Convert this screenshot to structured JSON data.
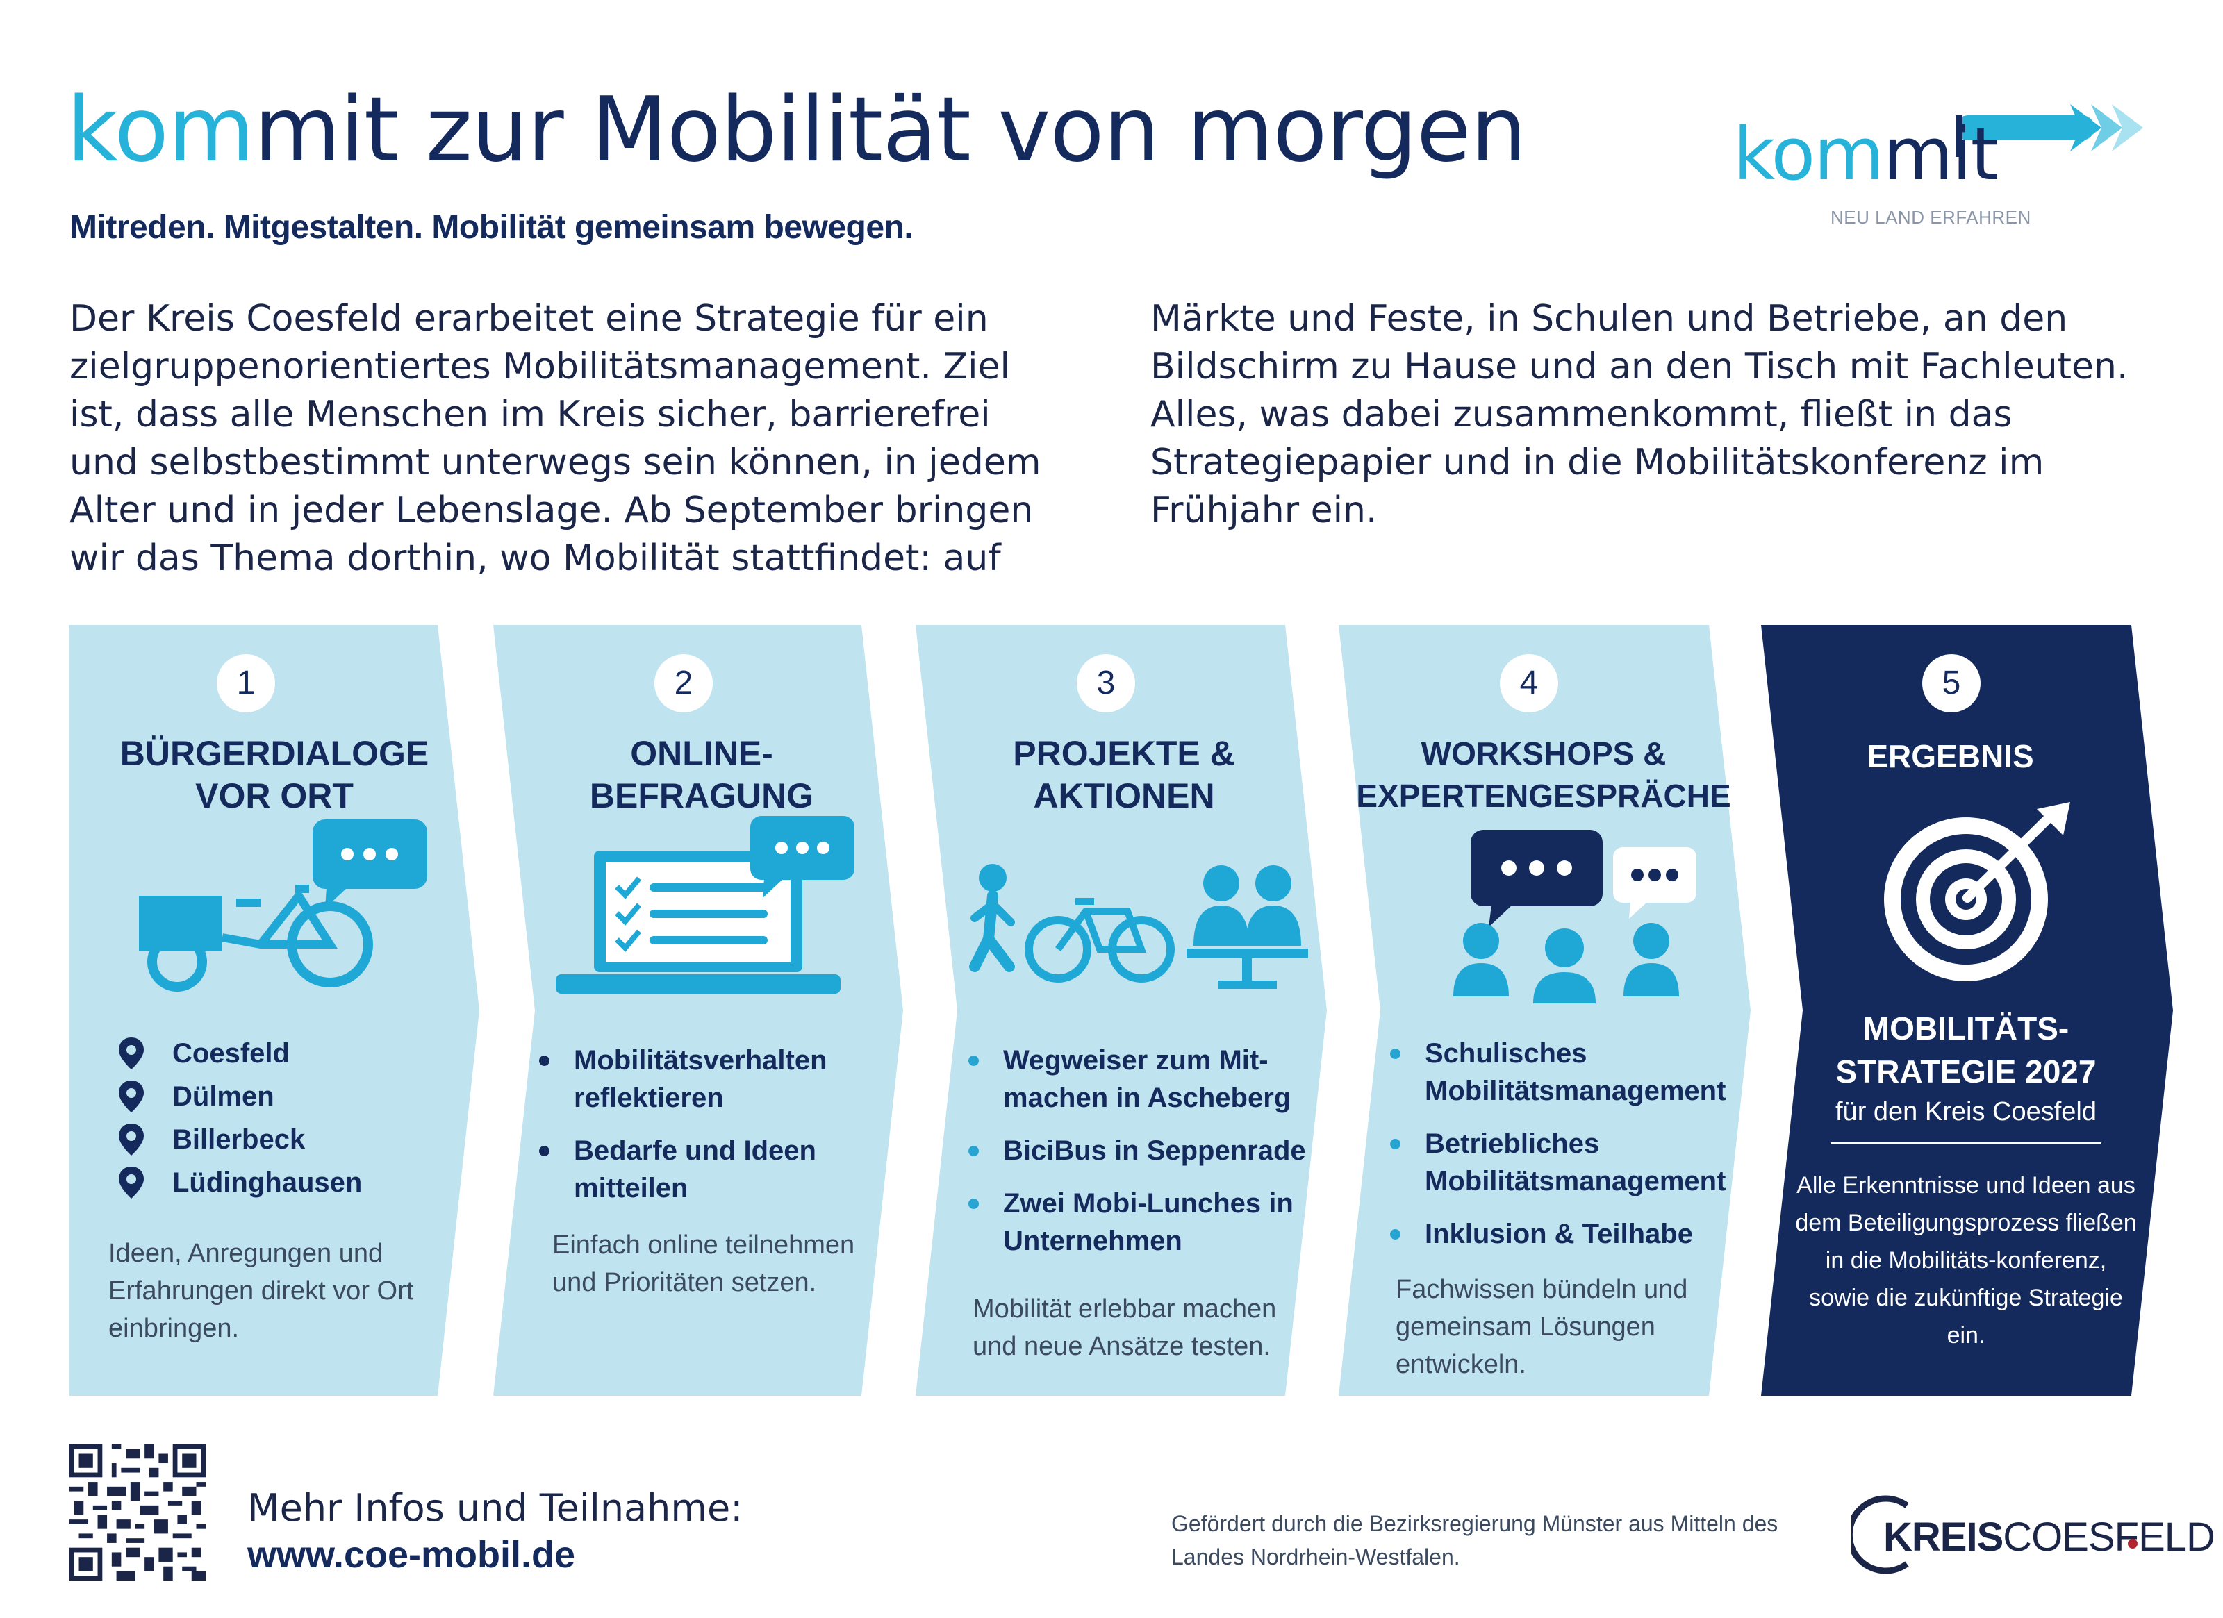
{
  "header": {
    "title_highlight": "kom",
    "title_rest": "mit zur Mobilität von morgen",
    "subtitle": "Mitreden. Mitgestalten. Mobilität gemeinsam bewegen."
  },
  "intro": {
    "col1": "Der Kreis Coesfeld erarbeitet eine Strategie für ein zielgruppenorientiertes Mobilitätsmanagement. Ziel ist, dass alle Menschen im Kreis sicher, barrierefrei und selbstbestimmt unterwegs sein können, in jedem Alter und in jeder Lebenslage. Ab September bringen wir das Thema dorthin, wo Mobilität stattfindet: auf",
    "col2": "Märkte und Feste, in Schulen und Betriebe, an den Bildschirm zu Hause und an den Tisch mit Fachleuten. Alles, was dabei zusammenkommt, fließt in das Strategiepapier und in die Mobilitätskonferenz im Frühjahr ein."
  },
  "logo": {
    "word_a": "kom",
    "word_b": "mit",
    "tagline": "NEU LAND ERFAHREN"
  },
  "colors": {
    "navy": "#152a5c",
    "light_blue_panel": "#bfe3ef",
    "accent_cyan": "#27b3d9",
    "icon_blue": "#1fa8d6"
  },
  "steps": [
    {
      "number": "1",
      "title_line1": "BÜRGERDIALOGE",
      "title_line2": "VOR ORT",
      "icon": "cargo-bike-chat-icon",
      "items": [
        "Coesfeld",
        "Dülmen",
        "Billerbeck",
        "Lüdinghausen"
      ],
      "description": "Ideen, Anregungen und Erfahrungen direkt vor Ort einbringen."
    },
    {
      "number": "2",
      "title_line1": "ONLINE-",
      "title_line2": "BEFRAGUNG",
      "icon": "laptop-checklist-icon",
      "items": [
        "Mobilitätsverhalten reflektieren",
        "Bedarfe und Ideen mitteilen"
      ],
      "description": "Einfach online teilnehmen und Prioritäten setzen."
    },
    {
      "number": "3",
      "title_line1": "PROJEKTE &",
      "title_line2": "AKTIONEN",
      "icon": "walk-bike-people-icon",
      "items": [
        "Wegweiser zum Mit-machen in Ascheberg",
        "BiciBus in Seppenrade",
        "Zwei Mobi-Lunches in Unternehmen"
      ],
      "description": "Mobilität erlebbar machen und neue Ansätze testen."
    },
    {
      "number": "4",
      "title_line1": "WORKSHOPS &",
      "title_line2": "EXPERTENGESPRÄCHE",
      "icon": "group-discussion-icon",
      "items": [
        "Schulisches Mobilitätsmanagement",
        "Betriebliches Mobilitätsmanagement",
        "Inklusion & Teilhabe"
      ],
      "description": "Fachwissen bündeln und gemeinsam Lösungen entwickeln."
    },
    {
      "number": "5",
      "title": "ERGEBNIS",
      "icon": "target-arrow-icon",
      "result_line1": "MOBILITÄTS-",
      "result_line2": "STRATEGIE 2027",
      "result_sub": "für den Kreis Coesfeld",
      "description": "Alle Erkenntnisse und Ideen aus dem Beteiligungsprozess fließen in die Mobilitäts-konferenz, sowie die zukünftige Strategie ein."
    }
  ],
  "footer": {
    "label": "Mehr Infos und Teilnahme:",
    "url": "www.coe-mobil.de",
    "funding": "Gefördert durch die Bezirksregierung Münster aus Mitteln des Landes Nordrhein-Westfalen.",
    "kreis_bold": "KREIS",
    "kreis_rest": "COESFELD"
  }
}
